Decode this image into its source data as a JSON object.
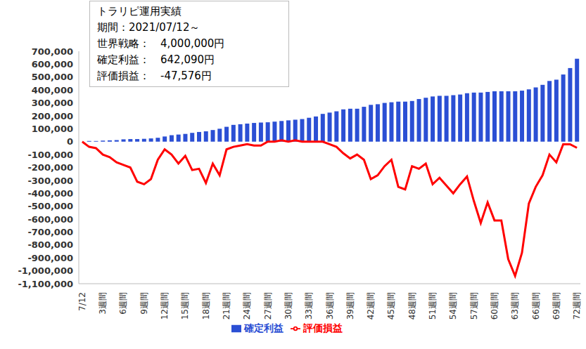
{
  "chart_data": {
    "type": "combo",
    "annotations": [
      "トラリピ運用実績",
      "期間：2021/07/12～",
      "世界戦略：　4,000,000円",
      "確定利益：　642,090円",
      "評価損益：　-47,576円"
    ],
    "categories": [
      "7/12",
      null,
      null,
      "3週間",
      null,
      null,
      "6週間",
      null,
      null,
      "9週間",
      null,
      null,
      "12週間",
      null,
      null,
      "15週間",
      null,
      null,
      "18週間",
      null,
      null,
      "21週間",
      null,
      null,
      "24週間",
      null,
      null,
      "27週間",
      null,
      null,
      "30週間",
      null,
      null,
      "33週間",
      null,
      null,
      "36週間",
      null,
      null,
      "39週間",
      null,
      null,
      "42週間",
      null,
      null,
      "45週間",
      null,
      null,
      "48週間",
      null,
      null,
      "51週間",
      null,
      null,
      "54週間",
      null,
      null,
      "57週間",
      null,
      null,
      "60週間",
      null,
      null,
      "63週間",
      null,
      null,
      "66週間",
      null,
      null,
      "69週間",
      null,
      null,
      "72週間"
    ],
    "series": [
      {
        "name": "確定利益",
        "type": "bar",
        "color": "#2b4fd4",
        "values": [
          0,
          5000,
          5000,
          8000,
          10000,
          12000,
          18000,
          20000,
          20000,
          22000,
          25000,
          30000,
          40000,
          50000,
          55000,
          60000,
          68000,
          75000,
          80000,
          90000,
          100000,
          115000,
          130000,
          135000,
          140000,
          145000,
          148000,
          150000,
          155000,
          160000,
          165000,
          170000,
          175000,
          185000,
          195000,
          215000,
          225000,
          235000,
          250000,
          255000,
          255000,
          270000,
          285000,
          290000,
          300000,
          305000,
          310000,
          310000,
          315000,
          330000,
          340000,
          350000,
          355000,
          355000,
          360000,
          365000,
          375000,
          380000,
          380000,
          385000,
          390000,
          390000,
          390000,
          390000,
          395000,
          405000,
          420000,
          440000,
          470000,
          480000,
          520000,
          570000,
          642090
        ]
      },
      {
        "name": "評価損益",
        "type": "line",
        "color": "#ff0000",
        "values": [
          0,
          -40000,
          -50000,
          -100000,
          -120000,
          -160000,
          -180000,
          -200000,
          -310000,
          -330000,
          -290000,
          -140000,
          -60000,
          -100000,
          -170000,
          -110000,
          -220000,
          -210000,
          -320000,
          -170000,
          -260000,
          -60000,
          -40000,
          -30000,
          -20000,
          -30000,
          -30000,
          0,
          0,
          10000,
          0,
          10000,
          0,
          0,
          0,
          0,
          -20000,
          -40000,
          -90000,
          -130000,
          -100000,
          -140000,
          -290000,
          -260000,
          -190000,
          -140000,
          -350000,
          -370000,
          -190000,
          -210000,
          -170000,
          -330000,
          -280000,
          -340000,
          -400000,
          -330000,
          -270000,
          -460000,
          -630000,
          -470000,
          -610000,
          -610000,
          -910000,
          -1040000,
          -860000,
          -480000,
          -350000,
          -260000,
          -100000,
          -160000,
          -20000,
          -20000,
          -47576
        ]
      }
    ],
    "ylim": [
      -1100000,
      700000
    ],
    "yticks": [
      {
        "value": -1100000,
        "label": "-1,100,000"
      },
      {
        "value": -1000000,
        "label": "-1,000,000"
      },
      {
        "value": -900000,
        "label": "-900,000"
      },
      {
        "value": -800000,
        "label": "-800,000"
      },
      {
        "value": -700000,
        "label": "-700,000"
      },
      {
        "value": -600000,
        "label": "-600,000"
      },
      {
        "value": -500000,
        "label": "-500,000"
      },
      {
        "value": -400000,
        "label": "-400,000"
      },
      {
        "value": -300000,
        "label": "-300,000"
      },
      {
        "value": -200000,
        "label": "-200,000"
      },
      {
        "value": -100000,
        "label": "-100,000"
      },
      0,
      {
        "value": 100000,
        "label": "100,000"
      },
      {
        "value": 200000,
        "label": "200,000"
      },
      {
        "value": 300000,
        "label": "300,000"
      },
      {
        "value": 400000,
        "label": "400,000"
      },
      {
        "value": 500000,
        "label": "500,000"
      },
      {
        "value": 600000,
        "label": "600,000"
      },
      {
        "value": 700000,
        "label": "700,000"
      }
    ],
    "grid": false,
    "legend": "bottom"
  }
}
